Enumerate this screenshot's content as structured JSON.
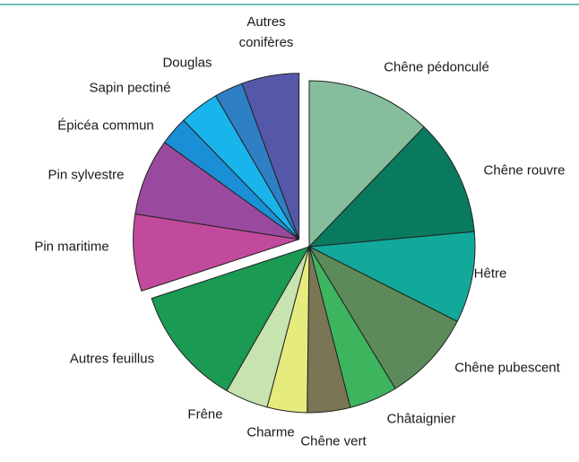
{
  "chart_data": {
    "type": "pie",
    "categories": [
      "Chêne pédonculé",
      "Chêne rouvre",
      "Hêtre",
      "Chêne pubescent",
      "Châtaignier",
      "Chêne vert",
      "Charme",
      "Frêne",
      "Autres feuillus",
      "Pin maritime",
      "Pin sylvestre",
      "Épicéa commun",
      "Sapin pectiné",
      "Douglas",
      "Autres conifères"
    ],
    "values": [
      12.2,
      11.4,
      8.9,
      8.9,
      4.7,
      4.2,
      3.9,
      4.2,
      11.7,
      7.5,
      7.5,
      2.8,
      3.9,
      2.8,
      5.6
    ],
    "colors": [
      "#86bd9c",
      "#0a7a5e",
      "#12a89a",
      "#5c8a5a",
      "#3cb55e",
      "#7a7555",
      "#e6eb7d",
      "#c7e3b0",
      "#1a9a52",
      "#c14a9c",
      "#9a4a9e",
      "#1a8fd6",
      "#19b4ec",
      "#2f7fc4",
      "#5558a8"
    ],
    "exploded": [
      false,
      false,
      false,
      false,
      false,
      false,
      false,
      false,
      false,
      true,
      true,
      true,
      true,
      true,
      true
    ]
  }
}
